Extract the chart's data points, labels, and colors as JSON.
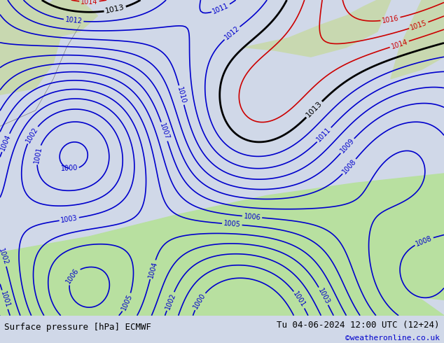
{
  "title_left": "Surface pressure [hPa] ECMWF",
  "title_right": "Tu 04-06-2024 12:00 UTC (12+24)",
  "watermark": "©weatheronline.co.uk",
  "bg_color": "#d0d8e8",
  "land_color_north": "#c8d8b0",
  "land_color_south": "#b8e0a0",
  "bottom_bar_color": "#dcdcdc",
  "bottom_text_color": "#000000",
  "watermark_color": "#0000cc",
  "blue_isobar_color": "#0000cc",
  "red_isobar_color": "#cc0000",
  "black_isobar_color": "#000000",
  "border_color": "#808080",
  "figsize": [
    6.34,
    4.9
  ],
  "dpi": 100
}
